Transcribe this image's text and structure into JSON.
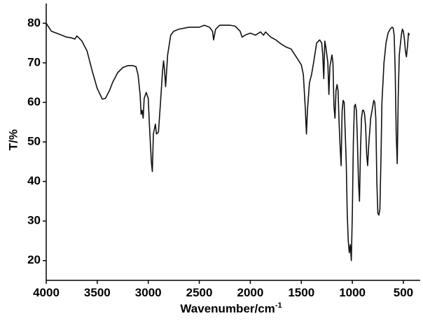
{
  "chart_data": {
    "type": "line",
    "y_label": "T/%",
    "x_label": "Wavenumber/cm",
    "x_label_superscript": "-1",
    "xlim": [
      4000,
      335
    ],
    "ylim": [
      15,
      85
    ],
    "xticks": [
      4000,
      3500,
      3000,
      2500,
      2000,
      1500,
      1000,
      500
    ],
    "yticks": [
      20,
      30,
      40,
      50,
      60,
      70,
      80
    ],
    "color": "#111111",
    "x": [
      4000,
      3950,
      3900,
      3850,
      3800,
      3750,
      3720,
      3700,
      3680,
      3650,
      3600,
      3550,
      3500,
      3450,
      3420,
      3380,
      3350,
      3300,
      3250,
      3200,
      3150,
      3120,
      3100,
      3080,
      3070,
      3060,
      3050,
      3040,
      3020,
      3000,
      2990,
      2970,
      2960,
      2950,
      2930,
      2920,
      2900,
      2880,
      2860,
      2850,
      2840,
      2830,
      2810,
      2780,
      2750,
      2700,
      2600,
      2500,
      2450,
      2400,
      2370,
      2360,
      2340,
      2300,
      2200,
      2150,
      2100,
      2080,
      2050,
      2000,
      1950,
      1900,
      1870,
      1850,
      1800,
      1750,
      1700,
      1650,
      1600,
      1550,
      1500,
      1480,
      1460,
      1450,
      1440,
      1420,
      1400,
      1380,
      1350,
      1320,
      1300,
      1290,
      1280,
      1270,
      1260,
      1240,
      1230,
      1220,
      1200,
      1190,
      1180,
      1170,
      1160,
      1150,
      1140,
      1130,
      1120,
      1110,
      1100,
      1090,
      1080,
      1060,
      1050,
      1040,
      1030,
      1020,
      1010,
      1000,
      990,
      980,
      970,
      960,
      950,
      940,
      930,
      920,
      910,
      900,
      890,
      880,
      870,
      860,
      850,
      840,
      820,
      800,
      790,
      780,
      770,
      760,
      750,
      740,
      730,
      720,
      710,
      690,
      670,
      650,
      630,
      610,
      600,
      590,
      580,
      570,
      560,
      550,
      540,
      520,
      510,
      500,
      490,
      480,
      470,
      460,
      450,
      440
    ],
    "values": [
      80,
      78,
      77.5,
      77,
      76.5,
      76.3,
      76,
      76.8,
      76.3,
      75.5,
      73,
      68,
      63.5,
      60.8,
      61,
      63,
      65,
      67.5,
      68.8,
      69.3,
      69.3,
      69,
      67,
      62,
      57,
      58,
      56,
      61,
      62.5,
      61,
      55,
      45,
      42.5,
      52,
      54.5,
      52,
      52.5,
      60,
      68,
      70.5,
      68,
      64,
      72,
      77,
      78,
      78.5,
      79,
      79,
      79.5,
      79,
      78,
      75.8,
      78.5,
      79.5,
      79.5,
      79.3,
      78,
      76.5,
      77,
      77.5,
      77,
      77.8,
      77,
      77.8,
      76.5,
      75.8,
      74.8,
      74,
      73.5,
      71.5,
      69.5,
      67,
      58,
      52,
      58,
      65,
      67,
      70,
      75,
      75.8,
      75,
      72,
      66,
      75.5,
      74,
      70,
      62,
      69,
      72,
      70,
      59,
      56,
      63,
      64.5,
      63,
      55,
      49,
      44,
      58,
      60.5,
      60,
      45,
      32,
      25,
      22,
      24,
      20,
      32,
      50,
      59,
      59.5,
      58,
      50,
      40,
      35,
      48,
      56,
      58,
      58,
      57,
      54,
      47,
      44,
      49,
      56,
      59,
      60.5,
      60,
      56,
      40,
      32,
      31.5,
      33,
      45,
      60,
      70,
      75,
      77.5,
      78.5,
      79,
      78.8,
      77,
      68,
      52,
      44.5,
      62,
      72,
      77,
      78.5,
      78,
      76,
      73,
      71.5,
      74,
      77.5,
      77
    ]
  }
}
